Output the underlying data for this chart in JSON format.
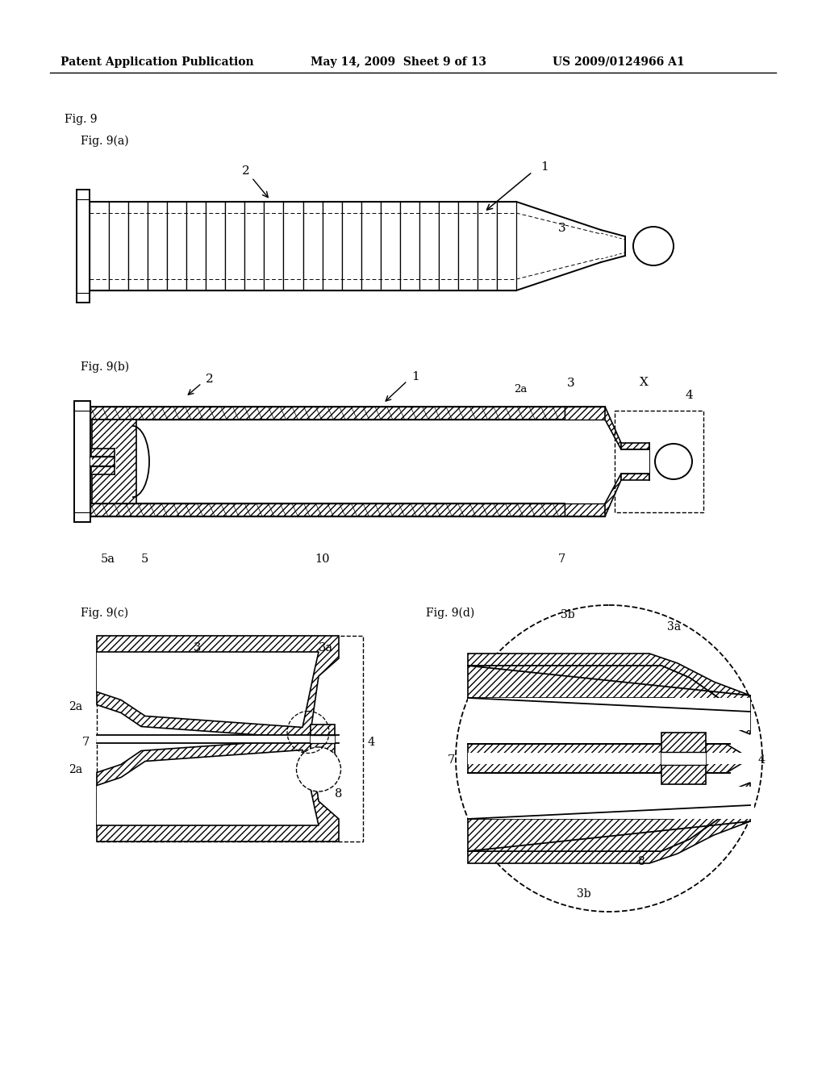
{
  "background_color": "#ffffff",
  "header_left": "Patent Application Publication",
  "header_center": "May 14, 2009  Sheet 9 of 13",
  "header_right": "US 2009/0124966 A1",
  "fig_label_main": "Fig. 9",
  "fig_label_a": "Fig. 9(a)",
  "fig_label_b": "Fig. 9(b)",
  "fig_label_c": "Fig. 9(c)",
  "fig_label_d": "Fig. 9(d)"
}
